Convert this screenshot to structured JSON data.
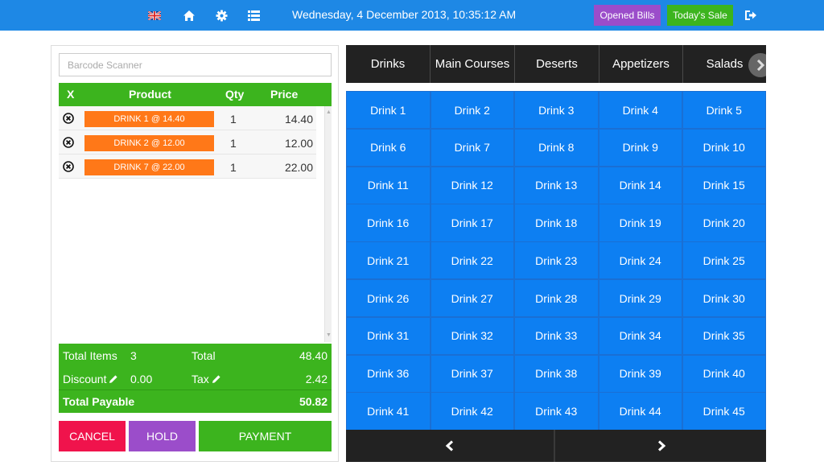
{
  "topbar": {
    "datetime": "Wednesday, 4 December 2013, 10:35:12 AM",
    "opened_bills_label": "Opened Bills",
    "todays_sale_label": "Today's Sale",
    "bg_color": "#1e88e5",
    "icons": [
      "uk-flag-icon",
      "home-icon",
      "gear-icon",
      "list-icon",
      "logout-icon"
    ]
  },
  "order": {
    "barcode_placeholder": "Barcode Scanner",
    "columns": {
      "remove": "X",
      "product": "Product",
      "qty": "Qty",
      "price": "Price"
    },
    "rows": [
      {
        "product": "DRINK 1 @ 14.40",
        "qty": "1",
        "price": "14.40"
      },
      {
        "product": "DRINK 2 @ 12.00",
        "qty": "1",
        "price": "12.00"
      },
      {
        "product": "DRINK 7 @ 22.00",
        "qty": "1",
        "price": "22.00"
      }
    ],
    "totals": {
      "total_items_label": "Total Items",
      "total_items_value": "3",
      "total_label": "Total",
      "total_value": "48.40",
      "discount_label": "Discount",
      "discount_value": "0.00",
      "tax_label": "Tax",
      "tax_value": "2.42",
      "payable_label": "Total Payable",
      "payable_value": "50.82"
    },
    "actions": {
      "cancel": "CANCEL",
      "hold": "HOLD",
      "payment": "PAYMENT"
    }
  },
  "categories": [
    "Drinks",
    "Main Courses",
    "Deserts",
    "Appetizers",
    "Salads"
  ],
  "products": [
    "Drink 1",
    "Drink 2",
    "Drink 3",
    "Drink 4",
    "Drink 5",
    "Drink 6",
    "Drink 7",
    "Drink 8",
    "Drink 9",
    "Drink 10",
    "Drink 11",
    "Drink 12",
    "Drink 13",
    "Drink 14",
    "Drink 15",
    "Drink 16",
    "Drink 17",
    "Drink 18",
    "Drink 19",
    "Drink 20",
    "Drink 21",
    "Drink 22",
    "Drink 23",
    "Drink 24",
    "Drink 25",
    "Drink 26",
    "Drink 27",
    "Drink 28",
    "Drink 29",
    "Drink 30",
    "Drink 31",
    "Drink 32",
    "Drink 33",
    "Drink 34",
    "Drink 35",
    "Drink 36",
    "Drink 37",
    "Drink 38",
    "Drink 39",
    "Drink 40",
    "Drink 41",
    "Drink 42",
    "Drink 43",
    "Drink 44",
    "Drink 45"
  ],
  "colors": {
    "green": "#3cb41e",
    "purple": "#9b4dca",
    "red": "#f0134c",
    "orange": "#ff7818",
    "product_blue": "#0d7ff2",
    "dark": "#222222"
  }
}
